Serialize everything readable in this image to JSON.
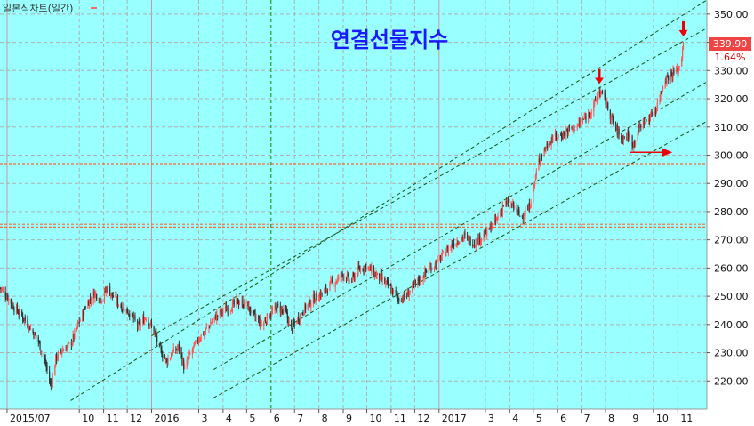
{
  "chart_data": {
    "type": "candlestick",
    "title": "연결선물지수",
    "legend": "일본식차트(일간)",
    "ylim": [
      210,
      355
    ],
    "y_ticks": [
      220,
      230,
      240,
      250,
      260,
      270,
      280,
      290,
      300,
      310,
      320,
      330,
      340,
      350
    ],
    "y_tick_labels": [
      "220.00",
      "230.00",
      "240.00",
      "250.00",
      "260.00",
      "270.00",
      "280.00",
      "290.00",
      "300.00",
      "310.00",
      "320.00",
      "330.00",
      "340.00",
      "350.00"
    ],
    "x_range": [
      "2015-06-22",
      "2017-12-08"
    ],
    "x_ticks": [
      {
        "date": "2015-07-01",
        "label": "2015/07"
      },
      {
        "date": "2015-10-01",
        "label": "10"
      },
      {
        "date": "2015-11-01",
        "label": "11"
      },
      {
        "date": "2015-12-01",
        "label": "12"
      },
      {
        "date": "2016-01-01",
        "label": "2016"
      },
      {
        "date": "2016-03-01",
        "label": "3"
      },
      {
        "date": "2016-04-01",
        "label": "4"
      },
      {
        "date": "2016-05-01",
        "label": "5"
      },
      {
        "date": "2016-06-01",
        "label": "6"
      },
      {
        "date": "2016-07-01",
        "label": "7"
      },
      {
        "date": "2016-08-01",
        "label": "8"
      },
      {
        "date": "2016-09-01",
        "label": "9"
      },
      {
        "date": "2016-10-01",
        "label": "10"
      },
      {
        "date": "2016-11-01",
        "label": "11"
      },
      {
        "date": "2016-12-01",
        "label": "12"
      },
      {
        "date": "2017-01-01",
        "label": "2017"
      },
      {
        "date": "2017-03-01",
        "label": "3"
      },
      {
        "date": "2017-04-01",
        "label": "4"
      },
      {
        "date": "2017-05-01",
        "label": "5"
      },
      {
        "date": "2017-06-01",
        "label": "6"
      },
      {
        "date": "2017-07-01",
        "label": "7"
      },
      {
        "date": "2017-08-01",
        "label": "8"
      },
      {
        "date": "2017-09-01",
        "label": "9"
      },
      {
        "date": "2017-10-01",
        "label": "10"
      },
      {
        "date": "2017-11-01",
        "label": "11"
      }
    ],
    "last_value_label": "339.90",
    "change_label": "1.64%",
    "series_closes": [
      [
        "2015-06-22",
        253
      ],
      [
        "2015-07-01",
        250
      ],
      [
        "2015-07-10",
        246
      ],
      [
        "2015-07-20",
        243
      ],
      [
        "2015-07-30",
        239
      ],
      [
        "2015-08-10",
        234
      ],
      [
        "2015-08-20",
        225
      ],
      [
        "2015-08-24",
        220
      ],
      [
        "2015-08-26",
        218
      ],
      [
        "2015-09-01",
        228
      ],
      [
        "2015-09-10",
        231
      ],
      [
        "2015-09-20",
        233
      ],
      [
        "2015-10-01",
        241
      ],
      [
        "2015-10-10",
        247
      ],
      [
        "2015-10-20",
        251
      ],
      [
        "2015-10-30",
        249
      ],
      [
        "2015-11-05",
        253
      ],
      [
        "2015-11-15",
        249
      ],
      [
        "2015-11-25",
        246
      ],
      [
        "2015-12-05",
        244
      ],
      [
        "2015-12-15",
        239
      ],
      [
        "2015-12-25",
        243
      ],
      [
        "2016-01-05",
        237
      ],
      [
        "2016-01-10",
        232
      ],
      [
        "2016-01-20",
        227
      ],
      [
        "2016-01-28",
        230
      ],
      [
        "2016-02-05",
        232
      ],
      [
        "2016-02-12",
        224
      ],
      [
        "2016-02-20",
        230
      ],
      [
        "2016-03-01",
        235
      ],
      [
        "2016-03-10",
        238
      ],
      [
        "2016-03-20",
        242
      ],
      [
        "2016-04-01",
        245
      ],
      [
        "2016-04-10",
        246
      ],
      [
        "2016-04-20",
        248
      ],
      [
        "2016-05-01",
        247
      ],
      [
        "2016-05-10",
        243
      ],
      [
        "2016-05-20",
        240
      ],
      [
        "2016-06-01",
        244
      ],
      [
        "2016-06-10",
        246
      ],
      [
        "2016-06-20",
        244
      ],
      [
        "2016-06-27",
        238
      ],
      [
        "2016-07-05",
        242
      ],
      [
        "2016-07-15",
        246
      ],
      [
        "2016-07-25",
        249
      ],
      [
        "2016-08-05",
        251
      ],
      [
        "2016-08-15",
        254
      ],
      [
        "2016-08-25",
        256
      ],
      [
        "2016-09-01",
        258
      ],
      [
        "2016-09-10",
        255
      ],
      [
        "2016-09-20",
        259
      ],
      [
        "2016-09-30",
        261
      ],
      [
        "2016-10-10",
        258
      ],
      [
        "2016-10-20",
        256
      ],
      [
        "2016-10-30",
        253
      ],
      [
        "2016-11-05",
        251
      ],
      [
        "2016-11-10",
        249
      ],
      [
        "2016-11-20",
        250
      ],
      [
        "2016-12-01",
        254
      ],
      [
        "2016-12-10",
        257
      ],
      [
        "2016-12-20",
        260
      ],
      [
        "2016-12-30",
        262
      ],
      [
        "2017-01-10",
        266
      ],
      [
        "2017-01-20",
        269
      ],
      [
        "2017-02-01",
        271
      ],
      [
        "2017-02-15",
        269
      ],
      [
        "2017-03-01",
        272
      ],
      [
        "2017-03-15",
        277
      ],
      [
        "2017-03-25",
        283
      ],
      [
        "2017-04-05",
        282
      ],
      [
        "2017-04-15",
        278
      ],
      [
        "2017-04-25",
        281
      ],
      [
        "2017-05-01",
        288
      ],
      [
        "2017-05-08",
        298
      ],
      [
        "2017-05-15",
        302
      ],
      [
        "2017-05-25",
        306
      ],
      [
        "2017-06-05",
        307
      ],
      [
        "2017-06-15",
        309
      ],
      [
        "2017-06-25",
        310
      ],
      [
        "2017-07-05",
        313
      ],
      [
        "2017-07-15",
        316
      ],
      [
        "2017-07-24",
        323
      ],
      [
        "2017-08-01",
        319
      ],
      [
        "2017-08-10",
        312
      ],
      [
        "2017-08-20",
        306
      ],
      [
        "2017-08-30",
        307
      ],
      [
        "2017-09-05",
        304
      ],
      [
        "2017-09-15",
        311
      ],
      [
        "2017-09-25",
        313
      ],
      [
        "2017-10-05",
        317
      ],
      [
        "2017-10-15",
        327
      ],
      [
        "2017-10-25",
        329
      ],
      [
        "2017-11-01",
        330
      ],
      [
        "2017-11-05",
        333
      ],
      [
        "2017-11-08",
        339.9
      ]
    ],
    "trend_channels": [
      {
        "from": [
          "2015-09-20",
          213
        ],
        "to": [
          "2017-12-08",
          355
        ]
      },
      {
        "from": [
          "2016-01-01",
          236
        ],
        "to": [
          "2017-12-08",
          345
        ]
      },
      {
        "from": [
          "2016-03-20",
          224
        ],
        "to": [
          "2017-12-08",
          326
        ]
      },
      {
        "from": [
          "2016-03-20",
          214
        ],
        "to": [
          "2017-12-08",
          312
        ]
      }
    ],
    "horizontal_levels": [
      297,
      275.5,
      274.5
    ],
    "vertical_marker_date": "2016-06-01",
    "annotations": [
      {
        "type": "down-arrow",
        "date": "2017-07-24",
        "value": 323
      },
      {
        "type": "down-arrow",
        "date": "2017-11-08",
        "value": 339.9
      },
      {
        "type": "right-arrow",
        "from": [
          "2017-09-01",
          301
        ],
        "to": [
          "2017-10-25",
          301
        ]
      }
    ]
  }
}
